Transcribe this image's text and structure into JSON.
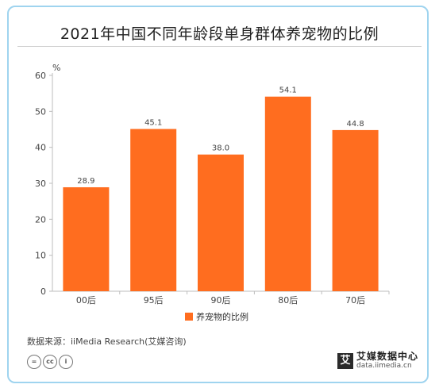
{
  "chart_data": {
    "type": "bar",
    "title": "2021年中国不同年龄段单身群体养宠物的比例",
    "unit": "%",
    "categories": [
      "00后",
      "95后",
      "90后",
      "80后",
      "70后"
    ],
    "series": [
      {
        "name": "养宠物的比例",
        "values": [
          28.9,
          45.1,
          38.0,
          54.1,
          44.8
        ]
      }
    ],
    "value_labels": [
      "28.9",
      "45.1",
      "38.0",
      "54.1",
      "44.8"
    ],
    "ylim": [
      0,
      60
    ],
    "yticks": [
      "0",
      "10",
      "20",
      "30",
      "40",
      "50",
      "60"
    ],
    "bar_color": "#ff6d1f",
    "grid": false,
    "legend_position": "bottom"
  },
  "footer": {
    "source": "数据来源：iiMedia Research(艾媒咨询)",
    "cc_icons": [
      "=",
      "cc",
      "i"
    ],
    "logo_mark": "艾",
    "logo_name": "艾媒数据中心",
    "logo_url": "data.iimedia.cn"
  }
}
